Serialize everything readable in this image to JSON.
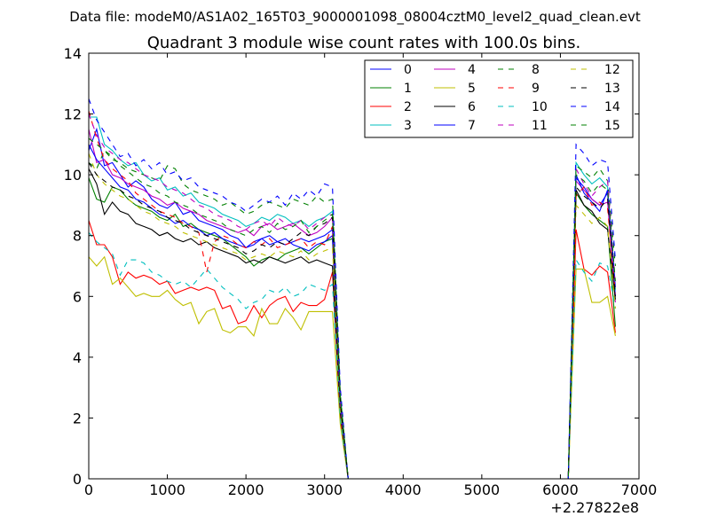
{
  "figure": {
    "suptitle": "Data file: modeM0/AS1A02_165T03_9000001098_08004cztM0_level2_quad_clean.evt",
    "title": "Quadrant 3 module wise count rates with 100.0s bins.",
    "x_offset_label": "+2.27822e8"
  },
  "chart_data": {
    "type": "line",
    "title": "Quadrant 3 module wise count rates with 100.0s bins.",
    "xlabel": "",
    "ylabel": "",
    "xlim": [
      0,
      7000
    ],
    "ylim": [
      0,
      14
    ],
    "x_offset": "+2.27822e8",
    "xticks": [
      "0",
      "1000",
      "2000",
      "3000",
      "4000",
      "5000",
      "6000",
      "7000"
    ],
    "yticks": [
      "0",
      "2",
      "4",
      "6",
      "8",
      "10",
      "12",
      "14"
    ],
    "grid": false,
    "legend_position": "top-right",
    "x": [
      0,
      100,
      200,
      300,
      400,
      500,
      600,
      700,
      800,
      900,
      1000,
      1100,
      1200,
      1300,
      1400,
      1500,
      1600,
      1700,
      1800,
      1900,
      2000,
      2100,
      2200,
      2300,
      2400,
      2500,
      2600,
      2700,
      2800,
      2900,
      3000,
      3100,
      3200,
      3300,
      3400,
      3500,
      3600,
      3700,
      3800,
      3900,
      4000,
      4100,
      4200,
      4300,
      4400,
      4500,
      4600,
      4700,
      4800,
      4900,
      5000,
      5100,
      5200,
      5300,
      5400,
      5500,
      5600,
      5700,
      5800,
      5900,
      6000,
      6100,
      6200,
      6300,
      6400,
      6500,
      6600,
      6700
    ],
    "series": [
      {
        "name": "0",
        "color": "#0000ff",
        "dash": "solid",
        "values": [
          10.8,
          11.5,
          10.3,
          10.4,
          10.0,
          9.6,
          9.8,
          9.6,
          9.2,
          9.0,
          8.9,
          9.1,
          8.7,
          8.8,
          8.5,
          8.4,
          8.3,
          8.2,
          8.0,
          7.9,
          7.6,
          7.7,
          7.9,
          8.0,
          7.8,
          7.7,
          7.8,
          7.9,
          7.8,
          7.9,
          8.0,
          8.2,
          2.5,
          0,
          0,
          0,
          0,
          0,
          0,
          0,
          0,
          0,
          0,
          0,
          0,
          0,
          0,
          0,
          0,
          0,
          0,
          0,
          0,
          0,
          0,
          0,
          0,
          0,
          0,
          0,
          0,
          0,
          9.9,
          9.6,
          9.2,
          9.0,
          9.4,
          6.0
        ]
      },
      {
        "name": "1",
        "color": "#008000",
        "dash": "solid",
        "values": [
          9.9,
          9.2,
          9.1,
          9.6,
          9.5,
          9.2,
          9.0,
          8.9,
          8.8,
          8.6,
          8.5,
          8.7,
          8.3,
          8.4,
          8.2,
          8.1,
          8.0,
          7.9,
          7.7,
          7.5,
          7.3,
          7.0,
          7.2,
          7.3,
          7.2,
          7.4,
          7.5,
          7.6,
          7.4,
          7.6,
          7.8,
          7.9,
          2.3,
          0,
          0,
          0,
          0,
          0,
          0,
          0,
          0,
          0,
          0,
          0,
          0,
          0,
          0,
          0,
          0,
          0,
          0,
          0,
          0,
          0,
          0,
          0,
          0,
          0,
          0,
          0,
          0,
          0,
          9.4,
          9.0,
          8.7,
          8.5,
          8.3,
          5.0
        ]
      },
      {
        "name": "2",
        "color": "#ff0000",
        "dash": "solid",
        "values": [
          8.5,
          7.7,
          7.7,
          7.3,
          6.4,
          6.8,
          6.6,
          6.7,
          6.6,
          6.4,
          6.5,
          6.1,
          6.2,
          6.3,
          6.2,
          6.3,
          6.2,
          5.6,
          5.7,
          5.1,
          5.2,
          5.7,
          5.3,
          5.7,
          5.9,
          6.0,
          5.5,
          5.8,
          5.7,
          5.7,
          5.9,
          6.8,
          2.0,
          0,
          0,
          0,
          0,
          0,
          0,
          0,
          0,
          0,
          0,
          0,
          0,
          0,
          0,
          0,
          0,
          0,
          0,
          0,
          0,
          0,
          0,
          0,
          0,
          0,
          0,
          0,
          0,
          0,
          8.2,
          6.9,
          6.7,
          7.0,
          6.8,
          4.8
        ]
      },
      {
        "name": "3",
        "color": "#00bfbf",
        "dash": "solid",
        "values": [
          11.9,
          11.9,
          11.0,
          10.8,
          10.5,
          10.3,
          10.4,
          10.0,
          9.8,
          9.9,
          9.5,
          9.6,
          9.3,
          9.4,
          9.1,
          9.0,
          8.9,
          8.7,
          8.6,
          8.5,
          8.3,
          8.4,
          8.6,
          8.5,
          8.7,
          8.6,
          8.4,
          8.5,
          8.3,
          8.5,
          8.6,
          8.8,
          2.7,
          0,
          0,
          0,
          0,
          0,
          0,
          0,
          0,
          0,
          0,
          0,
          0,
          0,
          0,
          0,
          0,
          0,
          0,
          0,
          0,
          0,
          0,
          0,
          0,
          0,
          0,
          0,
          0,
          0,
          10.4,
          10.0,
          9.7,
          9.9,
          9.6,
          6.2
        ]
      },
      {
        "name": "4",
        "color": "#bf00bf",
        "dash": "solid",
        "values": [
          11.5,
          10.4,
          10.5,
          10.0,
          9.9,
          9.7,
          9.6,
          9.5,
          9.3,
          9.2,
          9.0,
          9.1,
          8.9,
          8.8,
          8.7,
          8.5,
          8.4,
          8.3,
          8.2,
          8.1,
          8.2,
          8.0,
          8.3,
          8.4,
          8.2,
          8.3,
          8.4,
          8.2,
          8.0,
          8.1,
          8.3,
          8.6,
          2.6,
          0,
          0,
          0,
          0,
          0,
          0,
          0,
          0,
          0,
          0,
          0,
          0,
          0,
          0,
          0,
          0,
          0,
          0,
          0,
          0,
          0,
          0,
          0,
          0,
          0,
          0,
          0,
          0,
          0,
          9.8,
          9.5,
          9.2,
          9.0,
          9.1,
          5.8
        ]
      },
      {
        "name": "5",
        "color": "#bfbf00",
        "dash": "solid",
        "values": [
          7.3,
          7.0,
          7.3,
          6.4,
          6.6,
          6.3,
          6.0,
          6.1,
          6.0,
          6.0,
          6.2,
          5.9,
          5.7,
          5.8,
          5.1,
          5.5,
          5.6,
          4.9,
          4.8,
          5.0,
          5.0,
          4.7,
          5.6,
          5.1,
          5.1,
          5.6,
          5.3,
          4.9,
          5.5,
          5.5,
          5.5,
          5.5,
          1.8,
          0,
          0,
          0,
          0,
          0,
          0,
          0,
          0,
          0,
          0,
          0,
          0,
          0,
          0,
          0,
          0,
          0,
          0,
          0,
          0,
          0,
          0,
          0,
          0,
          0,
          0,
          0,
          0,
          0,
          6.9,
          6.9,
          5.8,
          5.8,
          6.0,
          4.7
        ]
      },
      {
        "name": "6",
        "color": "#000000",
        "dash": "solid",
        "values": [
          10.2,
          9.7,
          8.7,
          9.1,
          8.8,
          8.7,
          8.4,
          8.3,
          8.2,
          8.0,
          8.1,
          7.9,
          7.8,
          7.9,
          7.7,
          7.8,
          7.6,
          7.5,
          7.4,
          7.3,
          7.1,
          7.2,
          7.1,
          7.3,
          7.2,
          7.1,
          7.2,
          7.3,
          7.1,
          7.2,
          7.1,
          7.0,
          2.2,
          0,
          0,
          0,
          0,
          0,
          0,
          0,
          0,
          0,
          0,
          0,
          0,
          0,
          0,
          0,
          0,
          0,
          0,
          0,
          0,
          0,
          0,
          0,
          0,
          0,
          0,
          0,
          0,
          0,
          9.5,
          9.0,
          8.8,
          8.4,
          8.2,
          5.9
        ]
      },
      {
        "name": "7",
        "color": "#0000ff",
        "dash": "solid",
        "values": [
          11.0,
          10.5,
          10.2,
          9.9,
          9.6,
          9.5,
          9.2,
          9.1,
          8.9,
          8.7,
          8.6,
          8.4,
          8.5,
          8.3,
          8.2,
          8.0,
          8.1,
          7.9,
          7.8,
          7.7,
          7.6,
          7.8,
          7.9,
          7.7,
          7.8,
          7.9,
          7.7,
          7.6,
          7.5,
          7.7,
          7.8,
          8.0,
          2.4,
          0,
          0,
          0,
          0,
          0,
          0,
          0,
          0,
          0,
          0,
          0,
          0,
          0,
          0,
          0,
          0,
          0,
          0,
          0,
          0,
          0,
          0,
          0,
          0,
          0,
          0,
          0,
          0,
          0,
          10.0,
          9.4,
          9.1,
          8.8,
          9.5,
          6.3
        ]
      },
      {
        "name": "8",
        "color": "#008000",
        "dash": "dashed",
        "values": [
          10.4,
          10.2,
          10.8,
          10.5,
          10.4,
          10.2,
          10.1,
          10.0,
          9.9,
          9.8,
          10.3,
          10.2,
          9.7,
          9.5,
          9.4,
          9.3,
          9.2,
          9.0,
          9.1,
          8.9,
          8.7,
          8.8,
          9.0,
          9.1,
          9.0,
          8.9,
          9.2,
          9.1,
          9.0,
          9.3,
          9.1,
          9.2,
          2.8,
          0,
          0,
          0,
          0,
          0,
          0,
          0,
          0,
          0,
          0,
          0,
          0,
          0,
          0,
          0,
          0,
          0,
          0,
          0,
          0,
          0,
          0,
          0,
          0,
          0,
          0,
          0,
          0,
          0,
          10.3,
          10.1,
          9.9,
          10.2,
          9.8,
          7.0
        ]
      },
      {
        "name": "9",
        "color": "#ff0000",
        "dash": "dashed",
        "values": [
          12.1,
          11.2,
          10.5,
          10.2,
          10.0,
          9.8,
          9.4,
          9.2,
          9.0,
          8.8,
          8.7,
          8.6,
          8.4,
          8.3,
          8.1,
          6.8,
          7.8,
          8.0,
          7.9,
          7.7,
          7.6,
          7.8,
          7.7,
          7.9,
          7.6,
          7.7,
          7.8,
          7.9,
          7.6,
          7.8,
          7.7,
          8.3,
          2.5,
          0,
          0,
          0,
          0,
          0,
          0,
          0,
          0,
          0,
          0,
          0,
          0,
          0,
          0,
          0,
          0,
          0,
          0,
          0,
          0,
          0,
          0,
          0,
          0,
          0,
          0,
          0,
          0,
          0,
          9.3,
          9.6,
          9.0,
          9.1,
          8.9,
          6.1
        ]
      },
      {
        "name": "10",
        "color": "#00bfbf",
        "dash": "dashed",
        "values": [
          8.1,
          7.8,
          7.6,
          7.4,
          6.7,
          7.2,
          7.2,
          7.1,
          6.8,
          6.7,
          6.5,
          6.4,
          6.5,
          6.3,
          6.6,
          6.9,
          6.6,
          6.3,
          6.1,
          5.9,
          5.6,
          5.8,
          5.9,
          6.2,
          6.1,
          6.3,
          6.0,
          6.1,
          6.4,
          6.3,
          6.2,
          6.4,
          2.0,
          0,
          0,
          0,
          0,
          0,
          0,
          0,
          0,
          0,
          0,
          0,
          0,
          0,
          0,
          0,
          0,
          0,
          0,
          0,
          0,
          0,
          0,
          0,
          0,
          0,
          0,
          0,
          0,
          0,
          7.2,
          6.8,
          6.5,
          7.1,
          7.0,
          5.6
        ]
      },
      {
        "name": "11",
        "color": "#bf00bf",
        "dash": "dashed",
        "values": [
          12.0,
          11.3,
          10.9,
          10.7,
          10.5,
          10.4,
          10.2,
          10.0,
          9.9,
          9.8,
          9.6,
          9.5,
          9.4,
          9.2,
          9.0,
          8.9,
          8.7,
          8.6,
          8.5,
          8.3,
          8.2,
          8.4,
          8.5,
          8.3,
          8.6,
          8.4,
          8.3,
          8.5,
          8.2,
          8.4,
          8.6,
          8.7,
          2.6,
          0,
          0,
          0,
          0,
          0,
          0,
          0,
          0,
          0,
          0,
          0,
          0,
          0,
          0,
          0,
          0,
          0,
          0,
          0,
          0,
          0,
          0,
          0,
          0,
          0,
          0,
          0,
          0,
          0,
          10.2,
          9.7,
          9.3,
          9.6,
          9.8,
          6.4
        ]
      },
      {
        "name": "12",
        "color": "#bfbf00",
        "dash": "dashed",
        "values": [
          10.7,
          10.0,
          9.7,
          9.5,
          9.3,
          9.2,
          9.0,
          8.8,
          8.7,
          8.5,
          8.4,
          8.3,
          8.1,
          8.0,
          7.9,
          7.8,
          7.7,
          7.6,
          7.5,
          7.4,
          7.2,
          7.3,
          7.4,
          7.3,
          7.5,
          7.4,
          7.3,
          7.5,
          7.2,
          7.4,
          7.5,
          7.6,
          2.3,
          0,
          0,
          0,
          0,
          0,
          0,
          0,
          0,
          0,
          0,
          0,
          0,
          0,
          0,
          0,
          0,
          0,
          0,
          0,
          0,
          0,
          0,
          0,
          0,
          0,
          0,
          0,
          0,
          0,
          9.0,
          8.7,
          8.4,
          8.6,
          8.3,
          5.6
        ]
      },
      {
        "name": "13",
        "color": "#000000",
        "dash": "dashed",
        "values": [
          10.4,
          10.0,
          9.8,
          9.6,
          9.5,
          9.3,
          9.2,
          9.0,
          8.9,
          8.8,
          8.6,
          8.5,
          8.4,
          8.2,
          8.1,
          8.0,
          7.9,
          7.8,
          7.7,
          7.6,
          7.4,
          7.5,
          7.7,
          7.6,
          7.8,
          7.7,
          7.9,
          8.1,
          8.0,
          8.3,
          8.4,
          8.6,
          2.5,
          0,
          0,
          0,
          0,
          0,
          0,
          0,
          0,
          0,
          0,
          0,
          0,
          0,
          0,
          0,
          0,
          0,
          0,
          0,
          0,
          0,
          0,
          0,
          0,
          0,
          0,
          0,
          0,
          0,
          9.6,
          9.3,
          9.1,
          8.9,
          9.2,
          6.0
        ]
      },
      {
        "name": "14",
        "color": "#0000ff",
        "dash": "dashed",
        "values": [
          12.5,
          11.8,
          11.4,
          11.0,
          10.6,
          10.7,
          10.3,
          10.5,
          10.2,
          10.4,
          10.0,
          10.1,
          9.8,
          9.9,
          9.6,
          9.5,
          9.4,
          9.3,
          9.1,
          9.0,
          8.8,
          9.0,
          9.2,
          9.1,
          9.3,
          9.0,
          9.4,
          9.2,
          9.5,
          9.3,
          9.7,
          9.6,
          3.0,
          0,
          0,
          0,
          0,
          0,
          0,
          0,
          0,
          0,
          0,
          0,
          0,
          0,
          0,
          0,
          0,
          0,
          0,
          0,
          0,
          0,
          0,
          0,
          0,
          0,
          0,
          0,
          0,
          0,
          11.0,
          10.7,
          10.3,
          10.5,
          10.4,
          7.2
        ]
      },
      {
        "name": "15",
        "color": "#008000",
        "dash": "dashed",
        "values": [
          11.2,
          11.0,
          10.8,
          10.6,
          10.3,
          10.1,
          9.9,
          9.7,
          9.6,
          9.4,
          9.3,
          9.1,
          9.0,
          8.9,
          8.7,
          8.6,
          8.5,
          8.4,
          8.2,
          8.1,
          8.0,
          8.2,
          8.3,
          8.1,
          8.4,
          8.2,
          8.3,
          8.5,
          8.1,
          8.3,
          8.5,
          8.7,
          2.7,
          0,
          0,
          0,
          0,
          0,
          0,
          0,
          0,
          0,
          0,
          0,
          0,
          0,
          0,
          0,
          0,
          0,
          0,
          0,
          0,
          0,
          0,
          0,
          0,
          0,
          0,
          0,
          0,
          0,
          10.0,
          9.8,
          9.4,
          9.7,
          9.5,
          6.5
        ]
      }
    ]
  }
}
